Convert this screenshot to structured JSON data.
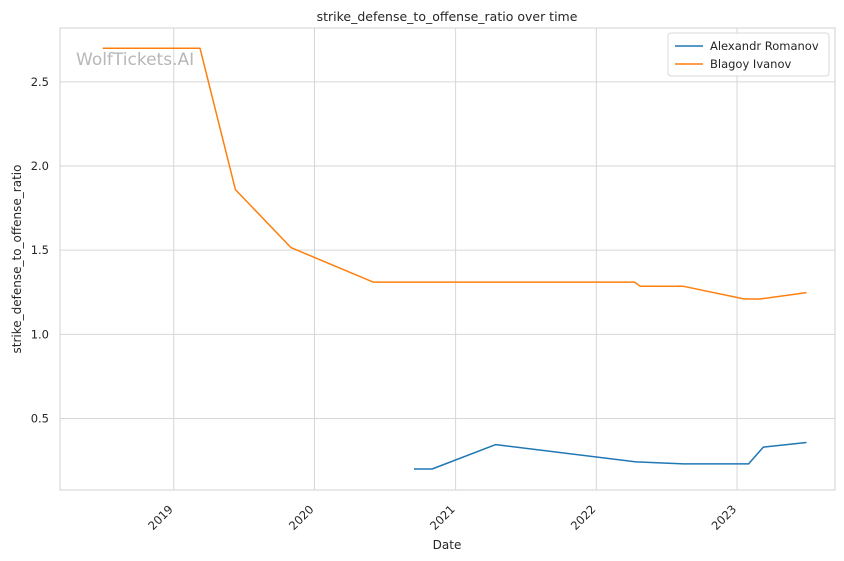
{
  "watermark": "WolfTickets.AI",
  "chart_data": {
    "type": "line",
    "title": "strike_defense_to_offense_ratio over time",
    "xlabel": "Date",
    "ylabel": "strike_defense_to_offense_ratio",
    "xlim": [
      "2018-03-12",
      "2023-09-12"
    ],
    "ylim": [
      0.075,
      2.82
    ],
    "x_ticks": [
      {
        "date": "2019-01-01",
        "label": "2019"
      },
      {
        "date": "2020-01-01",
        "label": "2020"
      },
      {
        "date": "2021-01-01",
        "label": "2021"
      },
      {
        "date": "2022-01-01",
        "label": "2022"
      },
      {
        "date": "2023-01-01",
        "label": "2023"
      }
    ],
    "y_ticks": [
      {
        "value": 0.5,
        "label": "0.5"
      },
      {
        "value": 1.0,
        "label": "1.0"
      },
      {
        "value": 1.5,
        "label": "1.5"
      },
      {
        "value": 2.0,
        "label": "2.0"
      },
      {
        "value": 2.5,
        "label": "2.5"
      }
    ],
    "grid": true,
    "legend_position": "top-right",
    "series": [
      {
        "name": "Alexandr Romanov",
        "color": "#1f77b4",
        "points": [
          {
            "x": "2020-09-15",
            "y": 0.2
          },
          {
            "x": "2020-11-01",
            "y": 0.2
          },
          {
            "x": "2021-04-15",
            "y": 0.345
          },
          {
            "x": "2022-04-15",
            "y": 0.242
          },
          {
            "x": "2022-08-15",
            "y": 0.23
          },
          {
            "x": "2023-01-31",
            "y": 0.23
          },
          {
            "x": "2023-03-10",
            "y": 0.33
          },
          {
            "x": "2023-06-30",
            "y": 0.357
          }
        ]
      },
      {
        "name": "Blagoy Ivanov",
        "color": "#ff7f0e",
        "points": [
          {
            "x": "2018-07-01",
            "y": 2.7
          },
          {
            "x": "2019-03-10",
            "y": 2.7
          },
          {
            "x": "2019-06-10",
            "y": 1.86
          },
          {
            "x": "2019-11-01",
            "y": 1.515
          },
          {
            "x": "2020-06-01",
            "y": 1.31
          },
          {
            "x": "2022-04-10",
            "y": 1.31
          },
          {
            "x": "2022-04-25",
            "y": 1.285
          },
          {
            "x": "2022-08-15",
            "y": 1.285
          },
          {
            "x": "2023-01-20",
            "y": 1.21
          },
          {
            "x": "2023-03-01",
            "y": 1.21
          },
          {
            "x": "2023-06-30",
            "y": 1.248
          }
        ]
      }
    ]
  }
}
